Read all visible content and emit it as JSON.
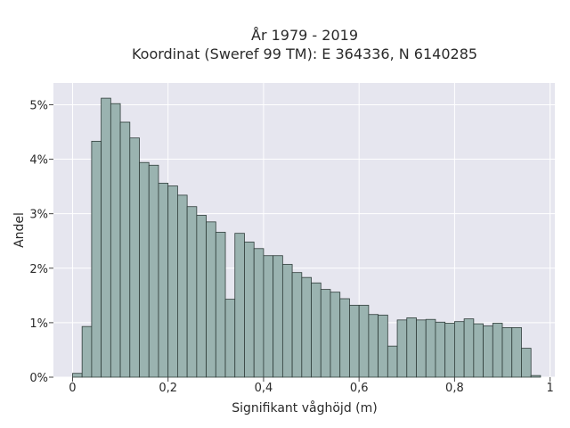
{
  "chart_data": {
    "type": "bar",
    "title_line1": "År 1979 - 2019",
    "title_line2": "Koordinat (Sweref 99 TM): E 364336, N 6140285",
    "xlabel": "Signifikant våghöjd (m)",
    "ylabel": "Andel",
    "xlim": [
      -0.04,
      1.01
    ],
    "ylim": [
      0,
      5.4
    ],
    "grid": true,
    "x_ticks": [
      0,
      0.2,
      0.4,
      0.6,
      0.8,
      1
    ],
    "x_tick_labels": [
      "0",
      "0,2",
      "0,4",
      "0,6",
      "0,8",
      "1"
    ],
    "y_ticks": [
      0,
      1,
      2,
      3,
      4,
      5
    ],
    "y_tick_labels": [
      "0%",
      "1%",
      "2%",
      "3%",
      "4%",
      "5%"
    ],
    "bin_width": 0.02,
    "bin_starts": [
      0.0,
      0.02,
      0.04,
      0.06,
      0.08,
      0.1,
      0.12,
      0.14,
      0.16,
      0.18,
      0.2,
      0.22,
      0.24,
      0.26,
      0.28,
      0.3,
      0.32,
      0.34,
      0.36,
      0.38,
      0.4,
      0.42,
      0.44,
      0.46,
      0.48,
      0.5,
      0.52,
      0.54,
      0.56,
      0.58,
      0.6,
      0.62,
      0.64,
      0.66,
      0.68,
      0.7,
      0.72,
      0.74,
      0.76,
      0.78,
      0.8,
      0.82,
      0.84,
      0.86,
      0.88,
      0.9,
      0.92,
      0.94,
      0.96
    ],
    "values": [
      0.07,
      0.93,
      4.33,
      5.12,
      5.02,
      4.68,
      4.39,
      3.94,
      3.89,
      3.56,
      3.51,
      3.34,
      3.13,
      2.97,
      2.85,
      2.66,
      1.43,
      2.64,
      2.48,
      2.36,
      2.23,
      2.23,
      2.07,
      1.92,
      1.83,
      1.73,
      1.61,
      1.56,
      1.44,
      1.32,
      1.32,
      1.15,
      1.14,
      0.57,
      1.05,
      1.09,
      1.05,
      1.06,
      1.01,
      0.99,
      1.02,
      1.07,
      0.98,
      0.94,
      0.99,
      0.91,
      0.91,
      0.53,
      0.03
    ]
  }
}
